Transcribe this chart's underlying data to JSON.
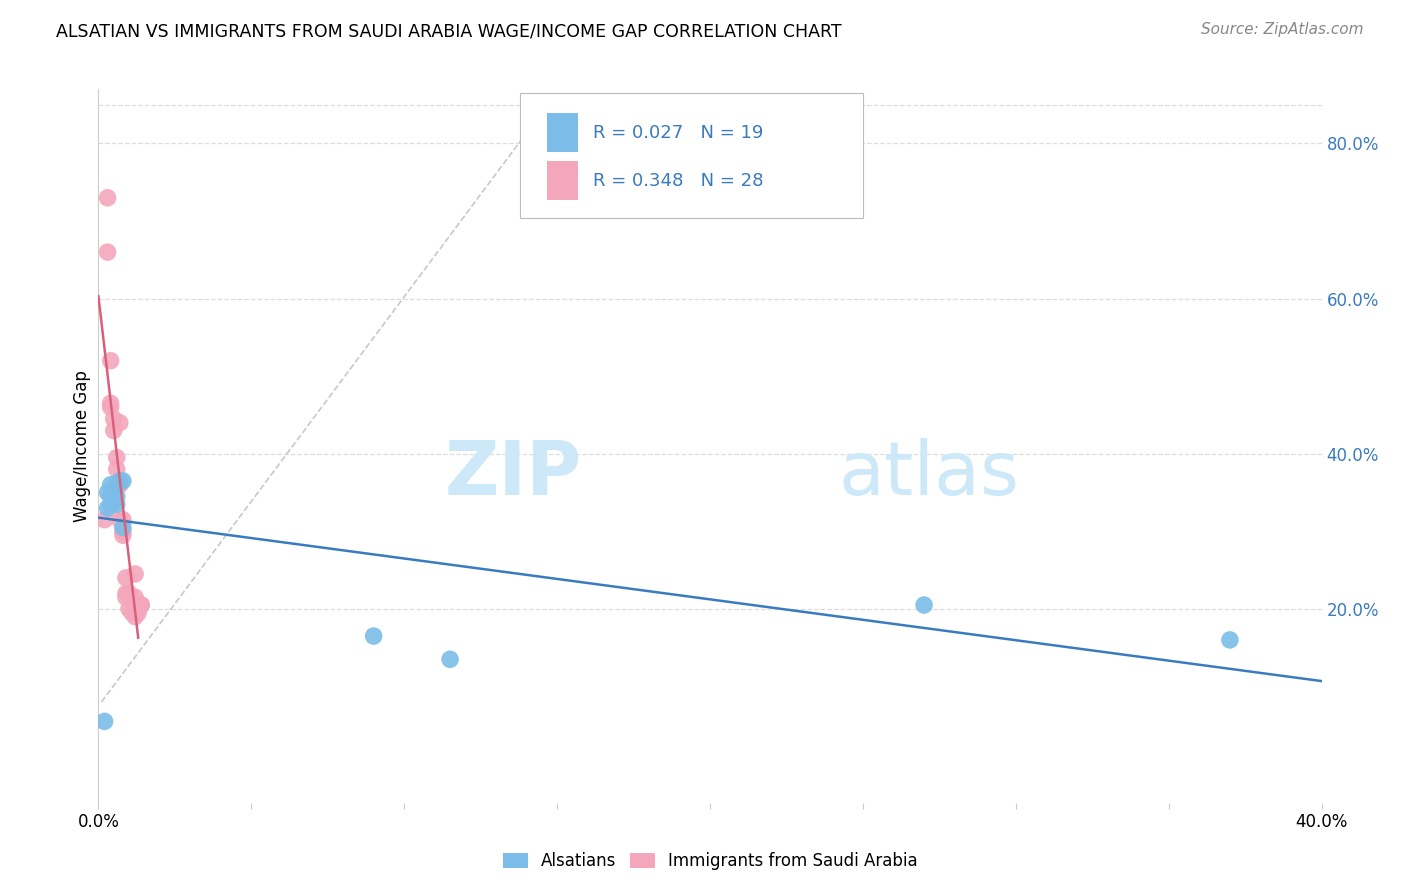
{
  "title": "ALSATIAN VS IMMIGRANTS FROM SAUDI ARABIA WAGE/INCOME GAP CORRELATION CHART",
  "source": "Source: ZipAtlas.com",
  "ylabel": "Wage/Income Gap",
  "xlim": [
    0.0,
    0.4
  ],
  "ylim": [
    -0.05,
    0.87
  ],
  "y_ticks_right": [
    0.2,
    0.4,
    0.6,
    0.8
  ],
  "y_tick_labels_right": [
    "20.0%",
    "40.0%",
    "60.0%",
    "80.0%"
  ],
  "blue_R": 0.027,
  "blue_N": 19,
  "pink_R": 0.348,
  "pink_N": 28,
  "blue_color": "#7bbde8",
  "pink_color": "#f4a7bc",
  "blue_line_color": "#3a7bbf",
  "pink_line_color": "#d9607a",
  "diag_line_color": "#c8c8c8",
  "label_color": "#3a7bbf",
  "watermark_zip": "ZIP",
  "watermark_atlas": "atlas",
  "watermark_color": "#cde8f8",
  "background_color": "#ffffff",
  "grid_color": "#dddddd",
  "blue_scatter_x": [
    0.002,
    0.003,
    0.003,
    0.004,
    0.004,
    0.004,
    0.005,
    0.005,
    0.005,
    0.006,
    0.006,
    0.006,
    0.007,
    0.008,
    0.008,
    0.09,
    0.115,
    0.27,
    0.37
  ],
  "blue_scatter_y": [
    0.055,
    0.33,
    0.35,
    0.335,
    0.345,
    0.36,
    0.34,
    0.345,
    0.35,
    0.335,
    0.345,
    0.36,
    0.365,
    0.305,
    0.365,
    0.165,
    0.135,
    0.205,
    0.16
  ],
  "pink_scatter_x": [
    0.002,
    0.003,
    0.003,
    0.004,
    0.004,
    0.004,
    0.005,
    0.005,
    0.006,
    0.006,
    0.007,
    0.007,
    0.007,
    0.008,
    0.008,
    0.008,
    0.009,
    0.009,
    0.009,
    0.01,
    0.01,
    0.011,
    0.012,
    0.012,
    0.012,
    0.013,
    0.014,
    0.014
  ],
  "pink_scatter_y": [
    0.315,
    0.73,
    0.66,
    0.52,
    0.46,
    0.465,
    0.445,
    0.43,
    0.395,
    0.38,
    0.315,
    0.36,
    0.44,
    0.295,
    0.3,
    0.315,
    0.24,
    0.22,
    0.215,
    0.22,
    0.2,
    0.195,
    0.19,
    0.215,
    0.245,
    0.195,
    0.205,
    0.205
  ]
}
